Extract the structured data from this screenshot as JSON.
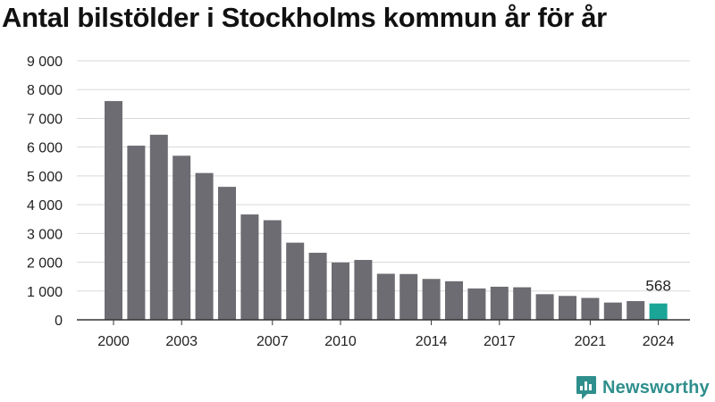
{
  "chart_data": {
    "type": "bar",
    "title": "Antal bilstölder i Stockholms kommun år för år",
    "categories": [
      2000,
      2001,
      2002,
      2003,
      2004,
      2005,
      2006,
      2007,
      2008,
      2009,
      2010,
      2011,
      2012,
      2013,
      2014,
      2015,
      2016,
      2017,
      2018,
      2019,
      2020,
      2021,
      2022,
      2023,
      2024
    ],
    "values": [
      7600,
      6050,
      6430,
      5700,
      5100,
      4620,
      3660,
      3460,
      2680,
      2330,
      1990,
      2080,
      1600,
      1590,
      1420,
      1340,
      1090,
      1150,
      1130,
      890,
      830,
      760,
      600,
      650,
      568
    ],
    "x_tick_labels": [
      "2000",
      "2003",
      "2007",
      "2010",
      "2014",
      "2017",
      "2021",
      "2024"
    ],
    "y_ticks": [
      0,
      1000,
      2000,
      3000,
      4000,
      5000,
      6000,
      7000,
      8000,
      9000
    ],
    "y_tick_labels": [
      "0",
      "1 000",
      "2 000",
      "3 000",
      "4 000",
      "5 000",
      "6 000",
      "7 000",
      "8 000",
      "9 000"
    ],
    "ylim": [
      0,
      9000
    ],
    "grid": true,
    "bar_color": "#6d6c72",
    "highlight_color": "#1aa597",
    "highlight_index": 24,
    "annotation": {
      "category": 2024,
      "text": "568"
    }
  },
  "brand": {
    "name": "Newsworthy",
    "color": "#2f8f8c"
  }
}
